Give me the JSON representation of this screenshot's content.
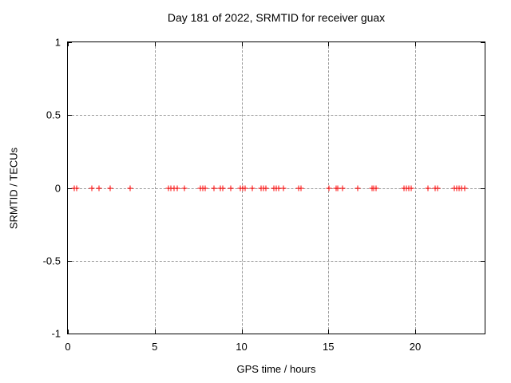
{
  "title": "Day 181 of 2022, SRMTID for receiver guax",
  "chart_data": {
    "type": "scatter",
    "title": "Day 181 of 2022, SRMTID for receiver guax",
    "xlabel": "GPS time / hours",
    "ylabel": "SRMTID / TECUs",
    "xlim": [
      0,
      24
    ],
    "ylim": [
      -1,
      1
    ],
    "grid": true,
    "legend": "none",
    "marker": "plus",
    "marker_color": "#ff0000",
    "grid_color": "#999999",
    "axis_color": "#000000",
    "background_color": "#ffffff",
    "xticks": [
      {
        "value": 0,
        "label": "0"
      },
      {
        "value": 5,
        "label": "5"
      },
      {
        "value": 10,
        "label": "10"
      },
      {
        "value": 15,
        "label": "15"
      },
      {
        "value": 20,
        "label": "20"
      }
    ],
    "yticks": [
      {
        "value": -1,
        "label": "-1"
      },
      {
        "value": -0.5,
        "label": "-0.5"
      },
      {
        "value": 0,
        "label": "0"
      },
      {
        "value": 0.5,
        "label": "0.5"
      },
      {
        "value": 1,
        "label": "1"
      }
    ],
    "series": [
      {
        "name": "SRMTID",
        "x": [
          0.37,
          0.5,
          1.37,
          1.79,
          2.43,
          3.57,
          5.8,
          5.95,
          6.13,
          6.3,
          6.7,
          7.63,
          7.76,
          7.9,
          8.4,
          8.78,
          8.9,
          9.4,
          9.92,
          10.06,
          10.2,
          10.63,
          11.12,
          11.27,
          11.39,
          11.85,
          12.0,
          12.15,
          12.41,
          13.3,
          13.42,
          15.05,
          15.43,
          15.52,
          15.8,
          16.69,
          17.5,
          17.63,
          17.77,
          19.36,
          19.5,
          19.64,
          19.79,
          20.74,
          21.15,
          21.29,
          22.23,
          22.39,
          22.54,
          22.68,
          22.84
        ],
        "y": [
          0,
          0,
          0,
          0,
          0,
          0,
          0,
          0,
          0,
          0,
          0,
          0,
          0,
          0,
          0,
          0,
          0,
          0,
          0,
          0,
          0,
          0,
          0,
          0,
          0,
          0,
          0,
          0,
          0,
          0,
          0,
          0,
          0,
          0,
          0,
          0,
          0,
          0,
          0,
          0,
          0,
          0,
          0,
          0,
          0,
          0,
          0,
          0,
          0,
          0,
          0
        ]
      }
    ]
  }
}
